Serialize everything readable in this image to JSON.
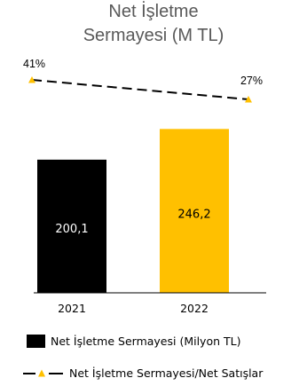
{
  "chart_data": {
    "type": "bar",
    "title_lines": [
      "Net İşletme",
      "Sermayesi (M TL)"
    ],
    "categories": [
      "2021",
      "2022"
    ],
    "series": [
      {
        "name": "Net İşletme Sermayesi (Milyon TL)",
        "kind": "bar",
        "values": [
          200.1,
          246.2
        ],
        "value_labels": [
          "200,1",
          "246,2"
        ],
        "colors": [
          "#000000",
          "#FFC000"
        ],
        "label_colors": [
          "#FFFFFF",
          "#000000"
        ]
      },
      {
        "name": "Net İşletme Sermayesi/Net Satışlar",
        "kind": "line",
        "values": [
          41,
          27
        ],
        "value_labels": [
          "41%",
          "27%"
        ],
        "line_color": "#000000",
        "line_style": "dashed",
        "marker": "triangle",
        "marker_color": "#FFC000"
      }
    ],
    "bar_ylim": [
      0,
      260
    ],
    "grid": false,
    "legend_position": "bottom"
  }
}
